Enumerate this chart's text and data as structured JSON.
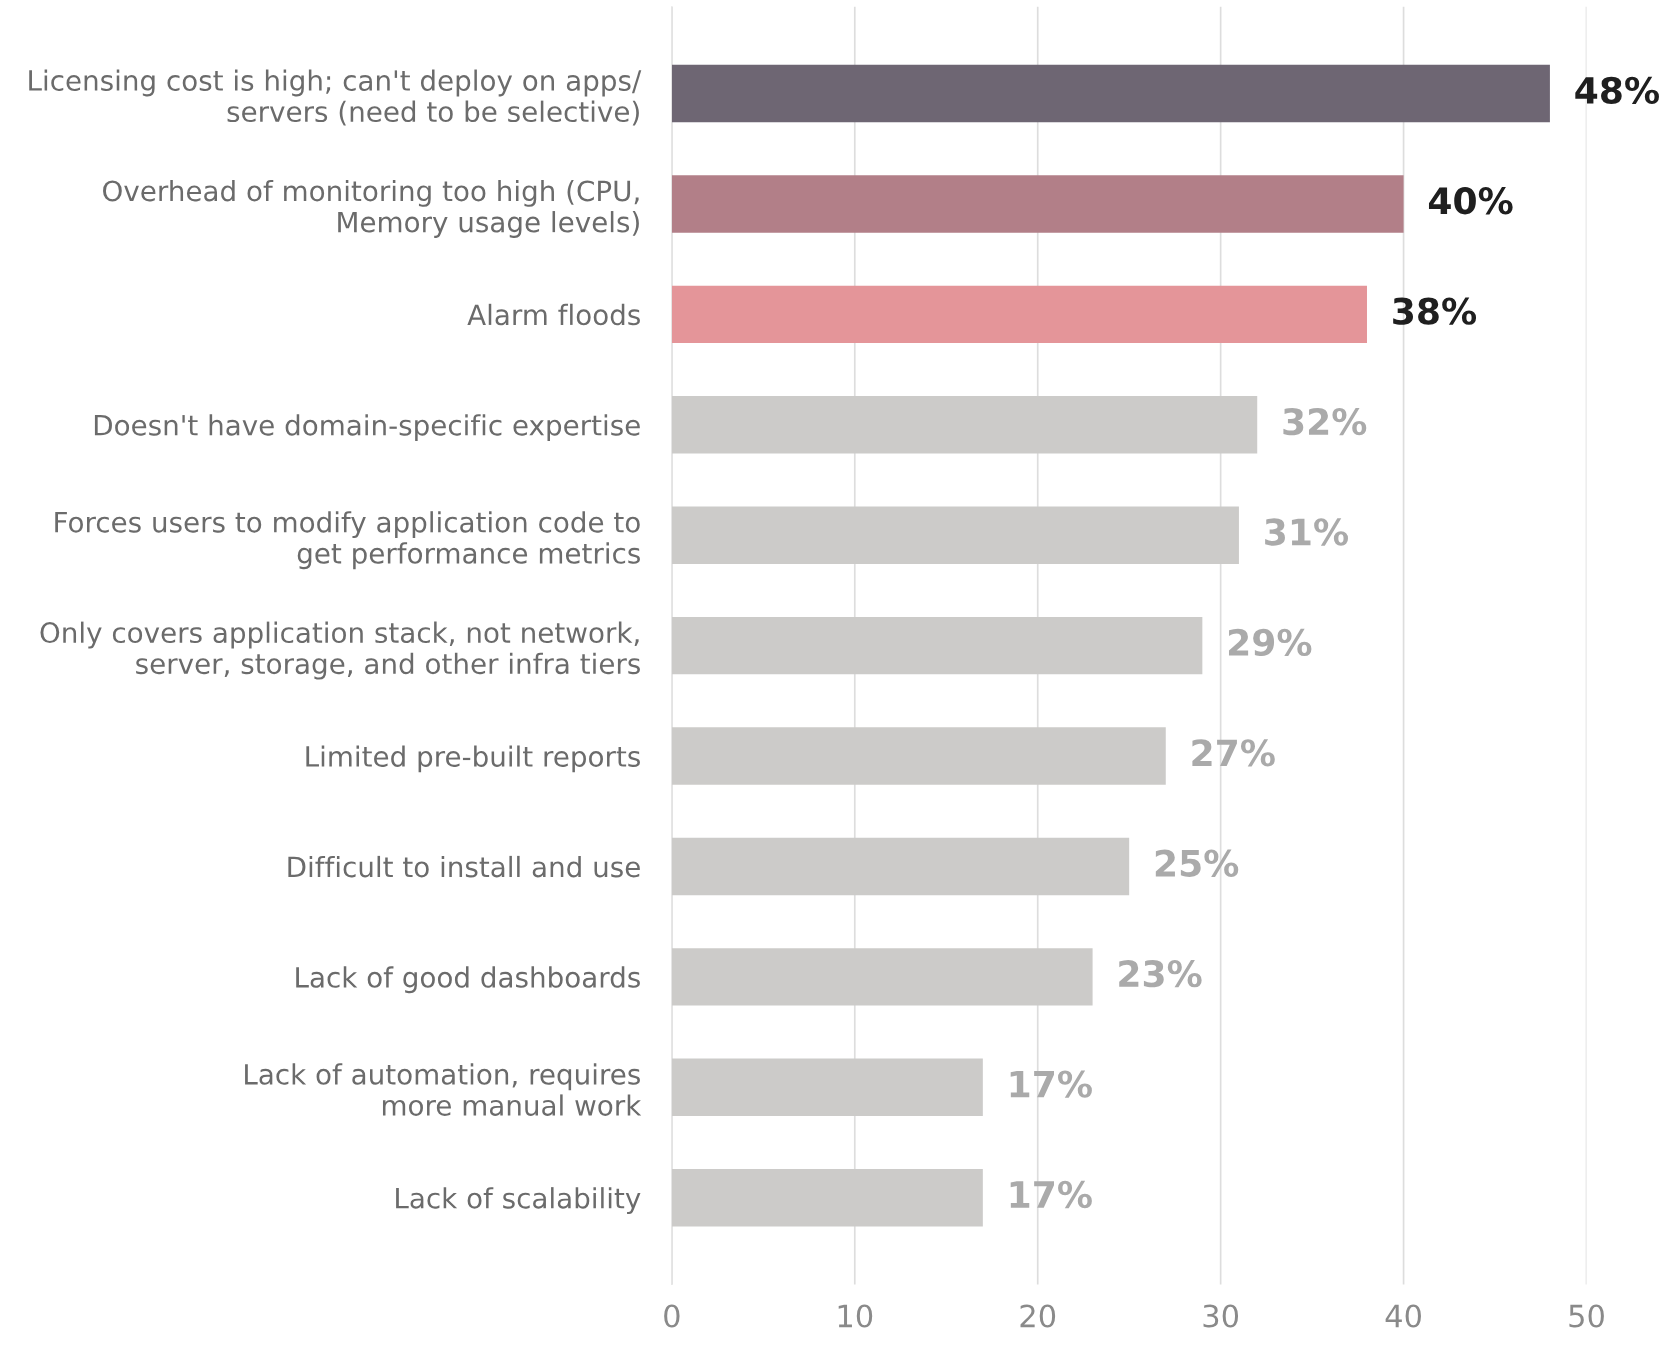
{
  "chart_data": {
    "type": "bar",
    "orientation": "horizontal",
    "categories": [
      "Licensing cost is high; can't deploy on apps/\nservers (need to be selective)",
      "Overhead of monitoring too high (CPU,\nMemory usage levels)",
      "Alarm floods",
      "Doesn't have domain-specific expertise",
      "Forces users to modify application code to\nget performance metrics",
      "Only covers application stack, not network,\nserver, storage, and other infra tiers",
      "Limited pre-built reports",
      "Difficult to install and use",
      "Lack of good dashboards",
      "Lack of automation, requires\nmore manual work",
      "Lack of scalability"
    ],
    "values": [
      48,
      40,
      38,
      32,
      31,
      29,
      27,
      25,
      23,
      17,
      17
    ],
    "colors": [
      "#6e6673",
      "#b27f88",
      "#e49599",
      "#cccbc9",
      "#cccbc9",
      "#cccbc9",
      "#cccbc9",
      "#cccbc9",
      "#cccbc9",
      "#cccbc9",
      "#cccbc9"
    ],
    "value_labels": [
      "48%",
      "40%",
      "38%",
      "32%",
      "31%",
      "29%",
      "27%",
      "25%",
      "23%",
      "17%",
      "17%"
    ],
    "xlim": [
      0,
      50
    ],
    "xticks": [
      0,
      10,
      20,
      30,
      40,
      50
    ],
    "grid": "x"
  }
}
